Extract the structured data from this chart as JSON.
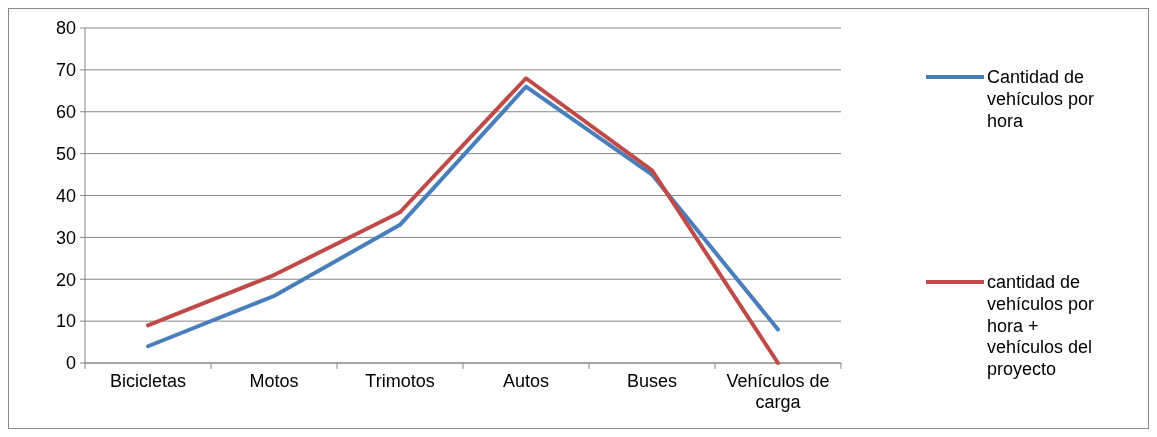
{
  "chart_data": {
    "type": "line",
    "categories": [
      "Bicicletas",
      "Motos",
      "Trimotos",
      "Autos",
      "Buses",
      "Vehículos de carga"
    ],
    "series": [
      {
        "name": "Cantidad de vehículos por hora",
        "color": "#4a7ebb",
        "values": [
          4,
          16,
          33,
          66,
          45,
          8
        ]
      },
      {
        "name": "cantidad de vehículos por hora + vehículos del proyecto",
        "color": "#be4b48",
        "values": [
          9,
          21,
          36,
          68,
          46,
          0
        ]
      }
    ],
    "ylim": [
      0,
      80
    ],
    "yticks": [
      0,
      10,
      20,
      30,
      40,
      50,
      60,
      70,
      80
    ],
    "grid": "y",
    "legend": "right",
    "marker": "none",
    "line_style": "solid"
  }
}
